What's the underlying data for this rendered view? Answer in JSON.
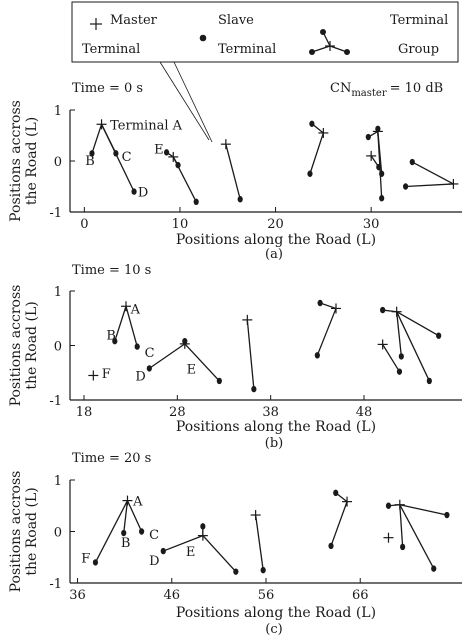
{
  "legend": {
    "master_line1": "Master",
    "master_line2": "Terminal",
    "slave_line1": "Slave",
    "slave_line2": "Terminal",
    "group_line1": "Terminal",
    "group_line2": "Group"
  },
  "chart_data": [
    {
      "type": "scatter",
      "caption": "(a)",
      "time_label": "Time = 0 s",
      "cn_label_prefix": "CN",
      "cn_label_sub": "master",
      "cn_label_value": "= 10 dB",
      "xlabel": "Positions along the Road (L)",
      "ylabel": [
        "Positions accross",
        "the Road (L)"
      ],
      "xlim": [
        -1.5,
        39.5
      ],
      "ylim": [
        -1,
        1
      ],
      "xticks": [
        0,
        10,
        20,
        30
      ],
      "yticks": [
        1,
        0,
        -1
      ],
      "groups": [
        {
          "label": "B",
          "master": [
            1.8,
            0.72
          ],
          "slaves": [
            [
              0.8,
              0.15
            ],
            [
              3.3,
              0.15
            ],
            [
              5.2,
              -0.6
            ]
          ]
        },
        {
          "label": "E",
          "master": [
            9.3,
            0.08
          ],
          "slaves": [
            [
              8.6,
              0.17
            ],
            [
              9.8,
              -0.08
            ],
            [
              11.7,
              -0.8
            ]
          ]
        },
        {
          "label": "",
          "master": [
            14.8,
            0.33
          ],
          "slaves": [
            [
              16.3,
              -0.75
            ]
          ]
        },
        {
          "label": "",
          "master": [
            25.0,
            0.55
          ],
          "slaves": [
            [
              23.8,
              0.73
            ],
            [
              23.6,
              -0.25
            ]
          ]
        },
        {
          "label": "",
          "master": [
            30.7,
            0.58
          ],
          "slaves": [
            [
              29.7,
              0.47
            ],
            [
              30.7,
              0.63
            ],
            [
              31.1,
              -0.25
            ],
            [
              31.1,
              -0.73
            ]
          ]
        },
        {
          "label": "",
          "master": [
            30.0,
            0.1
          ],
          "slaves": [
            [
              30.8,
              -0.12
            ]
          ]
        },
        {
          "label": "",
          "master": [
            38.6,
            -0.45
          ],
          "slaves": [
            [
              34.3,
              -0.02
            ],
            [
              33.6,
              -0.5
            ]
          ]
        }
      ],
      "annotations": [
        {
          "text": "Terminal A",
          "x": 2.7,
          "y": 0.72
        },
        {
          "text": "B",
          "x": 0.1,
          "y": 0.02
        },
        {
          "text": "C",
          "x": 3.9,
          "y": 0.1
        },
        {
          "text": "D",
          "x": 5.6,
          "y": -0.6
        },
        {
          "text": "E",
          "x": 7.3,
          "y": 0.25
        }
      ]
    },
    {
      "type": "scatter",
      "caption": "(b)",
      "time_label": "Time = 10 s",
      "xlabel": "Positions along the Road (L)",
      "ylabel": [
        "Positions accross",
        "the Road (L)"
      ],
      "xlim": [
        16.5,
        58.5
      ],
      "ylim": [
        -1,
        1
      ],
      "xticks": [
        18,
        28,
        38,
        48
      ],
      "yticks": [
        1,
        0,
        -1
      ],
      "groups": [
        {
          "label": "A",
          "master": [
            22.5,
            0.72
          ],
          "slaves": [
            [
              21.3,
              0.08
            ],
            [
              23.7,
              -0.02
            ]
          ]
        },
        {
          "label": "F",
          "master": [
            19.0,
            -0.55
          ],
          "slaves": []
        },
        {
          "label": "D",
          "master": [
            28.8,
            0.03
          ],
          "slaves": [
            [
              25.0,
              -0.42
            ],
            [
              28.8,
              0.08
            ],
            [
              32.5,
              -0.65
            ]
          ]
        },
        {
          "label": "",
          "master": [
            35.5,
            0.47
          ],
          "slaves": [
            [
              36.2,
              -0.8
            ]
          ]
        },
        {
          "label": "",
          "master": [
            45.0,
            0.68
          ],
          "slaves": [
            [
              43.3,
              0.78
            ],
            [
              43.0,
              -0.18
            ]
          ]
        },
        {
          "label": "",
          "master": [
            51.5,
            0.62
          ],
          "slaves": [
            [
              50.0,
              0.65
            ],
            [
              56.0,
              0.18
            ],
            [
              52.0,
              -0.2
            ],
            [
              55.0,
              -0.65
            ]
          ]
        },
        {
          "label": "",
          "master": [
            50.0,
            0.02
          ],
          "slaves": [
            [
              51.8,
              -0.48
            ]
          ]
        }
      ],
      "annotations": [
        {
          "text": "A",
          "x": 23.0,
          "y": 0.68
        },
        {
          "text": "B",
          "x": 20.4,
          "y": 0.2
        },
        {
          "text": "C",
          "x": 24.5,
          "y": -0.12
        },
        {
          "text": "D",
          "x": 23.5,
          "y": -0.55
        },
        {
          "text": "E",
          "x": 29.0,
          "y": -0.42
        },
        {
          "text": "F",
          "x": 19.9,
          "y": -0.5
        }
      ]
    },
    {
      "type": "scatter",
      "caption": "(c)",
      "time_label": "Time = 20 s",
      "xlabel": "Positions along the Road (L)",
      "ylabel": [
        "Positions accross",
        "the Road (L)"
      ],
      "xlim": [
        35.2,
        76.8
      ],
      "ylim": [
        -1,
        1
      ],
      "xticks": [
        36,
        46,
        56,
        66
      ],
      "yticks": [
        1,
        0,
        -1
      ],
      "groups": [
        {
          "label": "A",
          "master": [
            41.3,
            0.6
          ],
          "slaves": [
            [
              37.9,
              -0.6
            ],
            [
              40.9,
              -0.03
            ],
            [
              42.8,
              0.0
            ]
          ]
        },
        {
          "label": "E",
          "master": [
            49.3,
            -0.08
          ],
          "slaves": [
            [
              45.1,
              -0.38
            ],
            [
              49.3,
              0.1
            ],
            [
              52.8,
              -0.78
            ]
          ]
        },
        {
          "label": "",
          "master": [
            54.9,
            0.32
          ],
          "slaves": [
            [
              55.7,
              -0.75
            ]
          ]
        },
        {
          "label": "",
          "master": [
            64.6,
            0.58
          ],
          "slaves": [
            [
              63.4,
              0.75
            ],
            [
              62.9,
              -0.28
            ]
          ]
        },
        {
          "label": "",
          "master": [
            70.2,
            0.52
          ],
          "slaves": [
            [
              69.0,
              0.5
            ],
            [
              75.2,
              0.32
            ],
            [
              70.5,
              -0.3
            ],
            [
              73.8,
              -0.72
            ]
          ]
        },
        {
          "label": "",
          "master": [
            69.0,
            -0.12
          ],
          "slaves": []
        }
      ],
      "annotations": [
        {
          "text": "A",
          "x": 41.9,
          "y": 0.6
        },
        {
          "text": "B",
          "x": 40.6,
          "y": -0.2
        },
        {
          "text": "C",
          "x": 43.6,
          "y": -0.05
        },
        {
          "text": "D",
          "x": 43.6,
          "y": -0.55
        },
        {
          "text": "E",
          "x": 47.5,
          "y": -0.38
        },
        {
          "text": "F",
          "x": 36.4,
          "y": -0.5
        }
      ]
    }
  ]
}
